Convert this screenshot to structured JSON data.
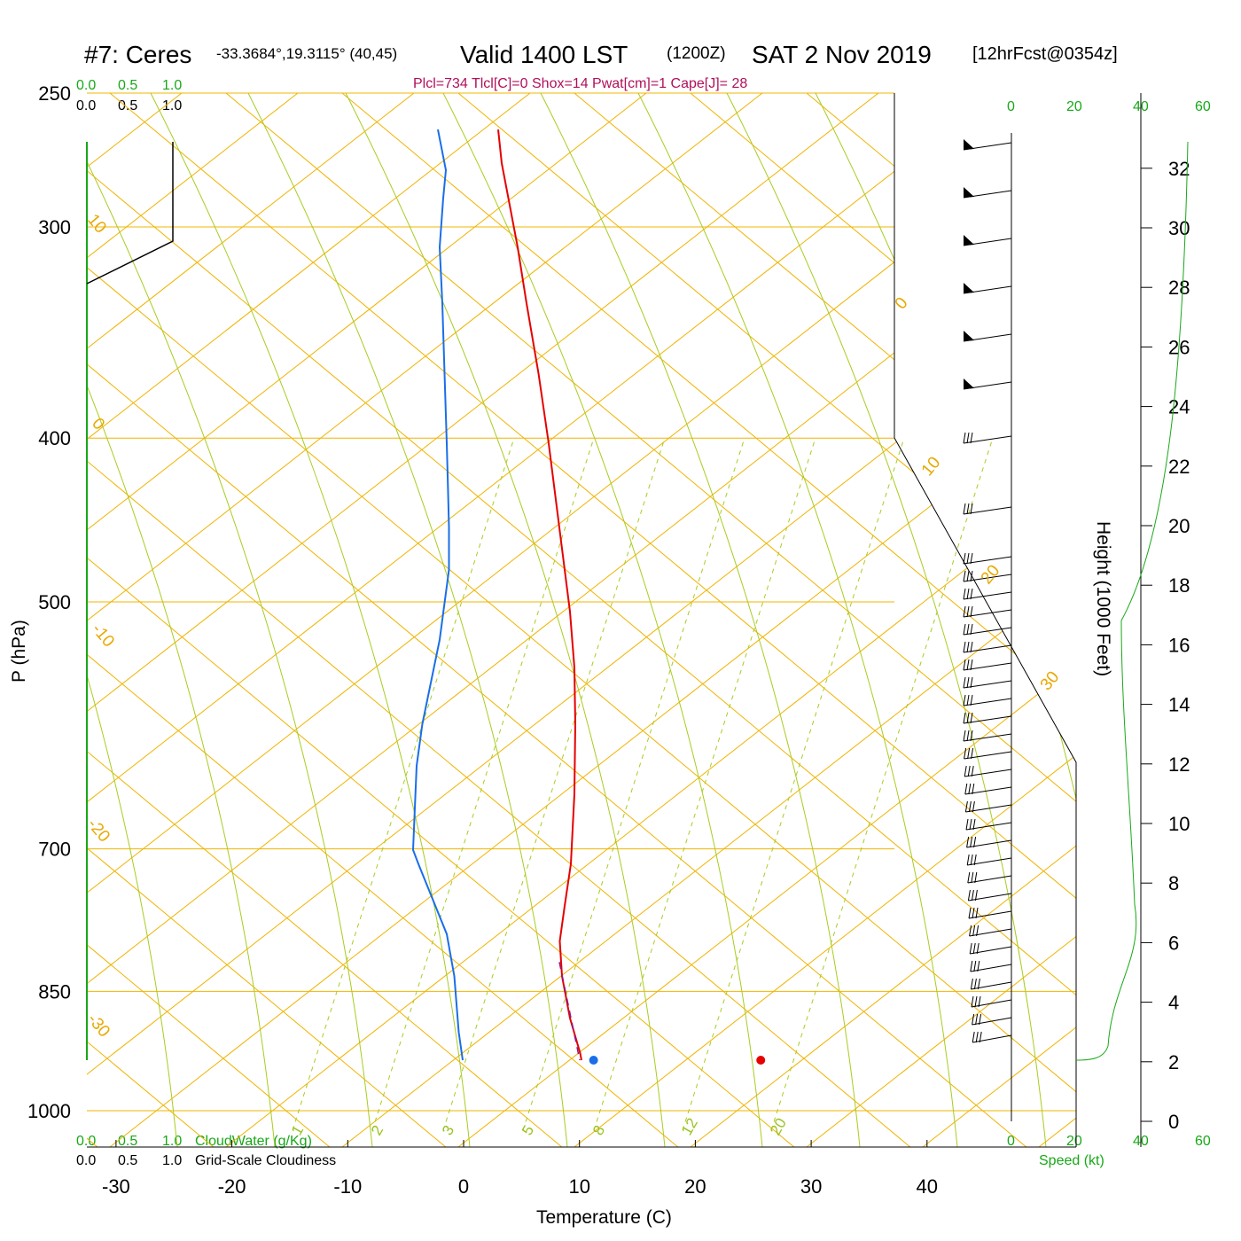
{
  "header": {
    "station": "#7: Ceres",
    "coords": "-33.3684°,19.3115° (40,45)",
    "valid_label": "Valid 1400 LST",
    "utc": "(1200Z)",
    "date": "SAT 2 Nov 2019",
    "forecast": "[12hrFcst@0354z]",
    "indices": "Plcl=734 Tlcl[C]=0 Shox=14 Pwat[cm]=1 Cape[J]= 28"
  },
  "cloud_scale": {
    "top_green": [
      "0.0",
      "0.5",
      "1.0"
    ],
    "top_black": [
      "0.0",
      "0.5",
      "1.0"
    ],
    "bottom_green": [
      "0.0",
      "0.5",
      "1.0"
    ],
    "bottom_black": [
      "0.0",
      "0.5",
      "1.0"
    ],
    "cloudwater_label": "CloudWater (g/Kg)",
    "cloudiness_label": "Grid-Scale Cloudiness"
  },
  "speed_scale": {
    "top": [
      "0",
      "20",
      "40",
      "60"
    ],
    "bottom": [
      "0",
      "20",
      "40",
      "60"
    ],
    "label": "Speed (kt)"
  },
  "colors": {
    "isobar": "#f0b400",
    "dry_adiabat": "#f0b400",
    "moist_adiabat": "#a8cc20",
    "mixing_ratio": "#a8cc20",
    "temperature": "#e60000",
    "dewpoint": "#1a6ee8",
    "parcel": "#8a1a8a",
    "cloud_green": "#18a818",
    "info_text": "#b0105a"
  },
  "chart_data": {
    "type": "line",
    "title": "Valid 1400 LST (1200Z) SAT 2 Nov 2019",
    "xlabel": "Temperature (C)",
    "ylabel": "P (hPa)",
    "right_label": "Height (1000 Feet)",
    "x_ticks": [
      -30,
      -20,
      -10,
      0,
      10,
      20,
      30,
      40
    ],
    "p_ticks": [
      250,
      300,
      400,
      500,
      700,
      850,
      1000
    ],
    "height_ticks": [
      0,
      2,
      4,
      6,
      8,
      10,
      12,
      14,
      16,
      18,
      20,
      22,
      24,
      26,
      28,
      30,
      32
    ],
    "dry_adiabat_labels": [
      "10",
      "0",
      "-10",
      "-20",
      "-30",
      "0",
      "10",
      "20",
      "30"
    ],
    "mixing_ratio_labels": [
      "1",
      "2",
      "3",
      "5",
      "8",
      "12",
      "20"
    ],
    "series": [
      {
        "name": "Temperature",
        "points": [
          [
            276.0,
            24.0
          ],
          [
            300.0,
            28.0
          ],
          [
            330.0,
            37.0
          ],
          [
            360.0,
            46.0
          ],
          [
            400.0,
            56.0
          ],
          [
            450.0,
            69.5
          ],
          [
            500.0,
            81.0
          ],
          [
            560.0,
            93.0
          ],
          [
            620.0,
            105.0
          ],
          [
            660.0,
            110.0
          ],
          [
            700.0,
            111.0
          ],
          [
            750.0,
            110.0
          ],
          [
            800.0,
            106.0
          ],
          [
            830.0,
            99.0
          ],
          [
            855.0,
            93.5
          ],
          [
            880.0,
            96.0
          ],
          [
            910.0,
            105.0
          ],
          [
            935.0,
            116.5
          ],
          [
            940.0,
            118.0
          ]
        ]
      },
      {
        "name": "Dewpoint",
        "points": [
          [
            276.0,
            -44.0
          ],
          [
            305.0,
            -35.0
          ],
          [
            325.0,
            -38.0
          ],
          [
            360.0,
            -42.0
          ],
          [
            400.0,
            -39.0
          ],
          [
            450.0,
            -36.5
          ],
          [
            500.0,
            -34.0
          ],
          [
            535.0,
            -32.5
          ],
          [
            560.0,
            -31.5
          ],
          [
            590.0,
            -31.5
          ],
          [
            640.0,
            -42.0
          ],
          [
            700.0,
            -61.5
          ],
          [
            730.0,
            -68.0
          ],
          [
            790.0,
            -72.0
          ],
          [
            800.0,
            -66.0
          ],
          [
            850.0,
            -34.0
          ],
          [
            880.0,
            -25.5
          ],
          [
            920.0,
            -20.5
          ],
          [
            940.0,
            -16.0
          ]
        ]
      },
      {
        "name": "Parcel",
        "points": [
          [
            870.0,
            93.0
          ],
          [
            940.0,
            116.0
          ]
        ]
      }
    ],
    "surface_temperature_marker": {
      "pressure": 940,
      "value": 24.5
    },
    "surface_dewpoint_marker": {
      "pressure": 940,
      "value": 10.3
    },
    "wind_barbs_count": 36
  }
}
